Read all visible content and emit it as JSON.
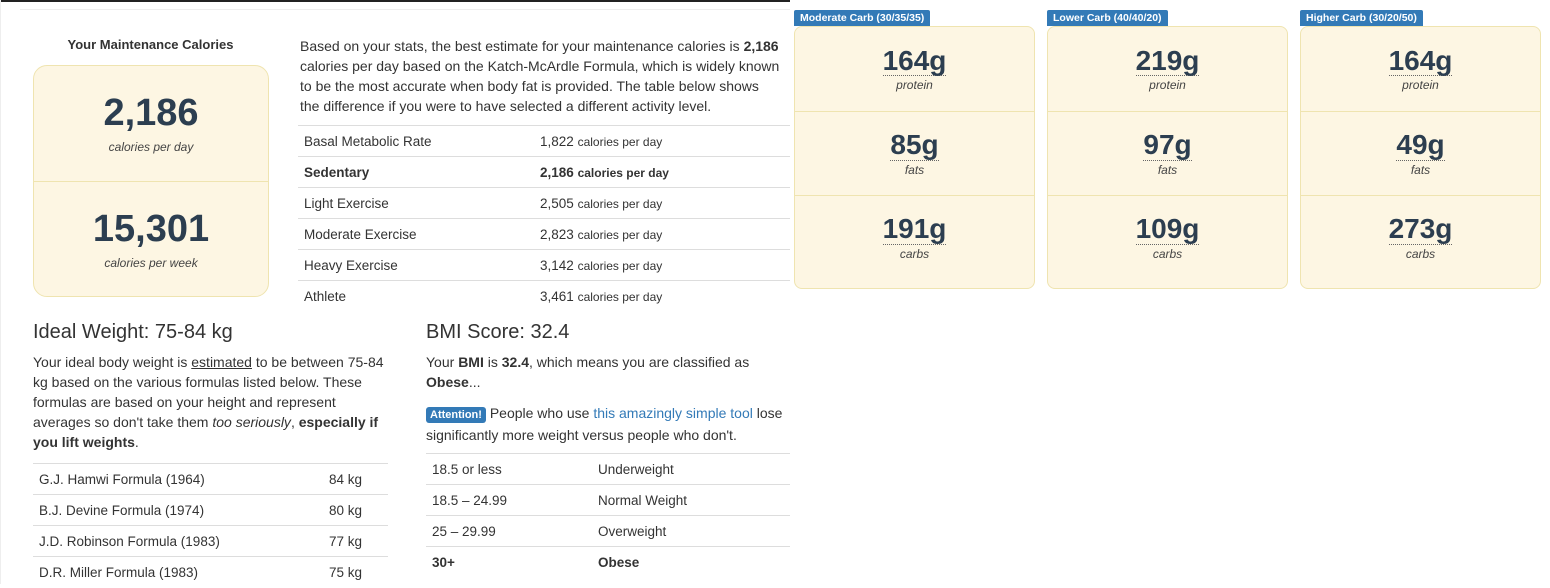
{
  "maintenance": {
    "title": "Your Maintenance Calories",
    "daily": "2,186",
    "daily_label": "calories per day",
    "weekly": "15,301",
    "weekly_label": "calories per week"
  },
  "intro": {
    "p1": "Based on your stats, the best estimate for your maintenance calories is ",
    "bold": "2,186",
    "p2": " calories per day based on the Katch-McArdle Formula, which is widely known to be the most accurate when body fat is provided. The table below shows the difference if you were to have selected a different activity level."
  },
  "activity": [
    {
      "label": "Basal Metabolic Rate",
      "value": "1,822",
      "unit": "calories per day"
    },
    {
      "label": "Sedentary",
      "value": "2,186",
      "unit": "calories per day",
      "selected": true
    },
    {
      "label": "Light Exercise",
      "value": "2,505",
      "unit": "calories per day"
    },
    {
      "label": "Moderate Exercise",
      "value": "2,823",
      "unit": "calories per day"
    },
    {
      "label": "Heavy Exercise",
      "value": "3,142",
      "unit": "calories per day"
    },
    {
      "label": "Athlete",
      "value": "3,461",
      "unit": "calories per day"
    }
  ],
  "plans": [
    {
      "label": "Moderate Carb (30/35/35)",
      "protein": "164g",
      "fats": "85g",
      "carbs": "191g"
    },
    {
      "label": "Lower Carb (40/40/20)",
      "protein": "219g",
      "fats": "97g",
      "carbs": "109g"
    },
    {
      "label": "Higher Carb (30/20/50)",
      "protein": "164g",
      "fats": "49g",
      "carbs": "273g"
    }
  ],
  "macro_labels": {
    "protein": "protein",
    "fats": "fats",
    "carbs": "carbs"
  },
  "ideal": {
    "title": "Ideal Weight: 75-84 kg",
    "t1": "Your ideal body weight is ",
    "u": "estimated",
    "t2": " to be between 75-84 kg based on the various formulas listed below. These formulas are based on your height and represent averages so don't take them ",
    "i": "too seriously",
    "t3": ", ",
    "b": "especially if you lift weights",
    "t4": ".",
    "rows": [
      {
        "label": "G.J. Hamwi Formula (1964)",
        "value": "84 kg"
      },
      {
        "label": "B.J. Devine Formula (1974)",
        "value": "80 kg"
      },
      {
        "label": "J.D. Robinson Formula (1983)",
        "value": "77 kg"
      },
      {
        "label": "D.R. Miller Formula (1983)",
        "value": "75 kg"
      }
    ]
  },
  "bmi": {
    "title": "BMI Score: 32.4",
    "t1": "Your ",
    "b1": "BMI",
    "t2": " is ",
    "b2": "32.4",
    "t3": ", which means you are classified as ",
    "b3": "Obese",
    "t4": "...",
    "badge": "Attention!",
    "a1": " People who use ",
    "link": "this amazingly simple tool",
    "a2": " lose significantly more weight versus people who don't.",
    "rows": [
      {
        "range": "18.5 or less",
        "cls": "Underweight"
      },
      {
        "range": "18.5 – 24.99",
        "cls": "Normal Weight"
      },
      {
        "range": "25 – 29.99",
        "cls": "Overweight"
      },
      {
        "range": "30+",
        "cls": "Obese",
        "selected": true
      }
    ]
  }
}
